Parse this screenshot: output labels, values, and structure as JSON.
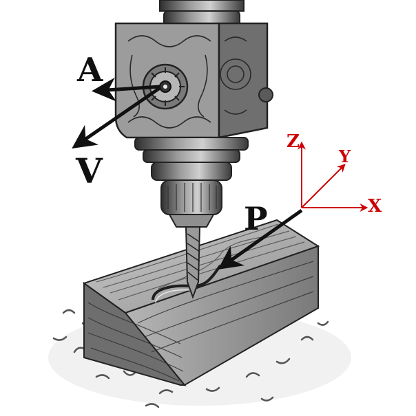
{
  "colors": {
    "ink": "#111111",
    "axis": "#cc0000",
    "metal_dark": "#3a3a3a",
    "metal_mid": "#6b6b6b",
    "metal_light": "#bdbdbd",
    "wood_dark": "#3f3f3f",
    "wood_light": "#d9d9d9"
  },
  "labels": {
    "A": "A",
    "V": "V",
    "P": "P"
  },
  "axes": {
    "x": "X",
    "y": "Y",
    "z": "Z"
  },
  "icons": {
    "spindle": "drill-spindle-icon",
    "bit": "drill-bit-icon",
    "workpiece": "wood-block-icon",
    "chips": "wood-chips-icon"
  }
}
